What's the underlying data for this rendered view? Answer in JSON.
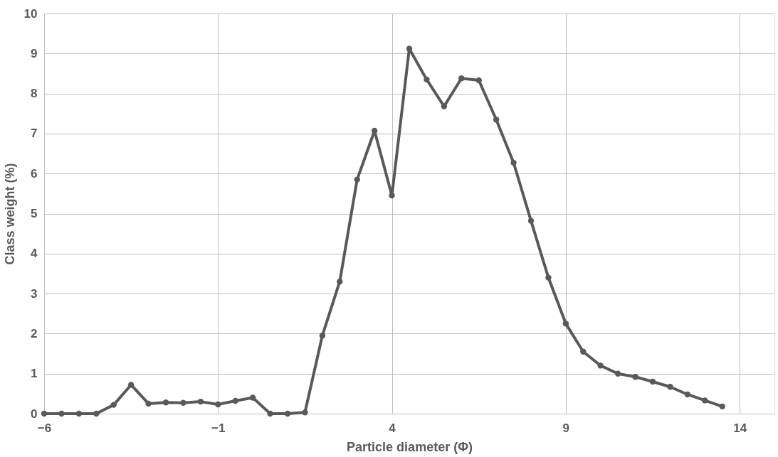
{
  "chart_data": {
    "type": "line",
    "xlabel": "Particle diameter (Φ)",
    "ylabel": "Class weight (%)",
    "x": [
      -6,
      -5.5,
      -5,
      -4.5,
      -4,
      -3.5,
      -3,
      -2.5,
      -2,
      -1.5,
      -1,
      -0.5,
      0,
      0.5,
      1,
      1.5,
      2,
      2.5,
      3,
      3.5,
      4,
      4.5,
      5,
      5.5,
      6,
      6.5,
      7,
      7.5,
      8,
      8.5,
      9,
      9.5,
      10,
      10.5,
      11,
      11.5,
      12,
      12.5,
      13,
      13.5
    ],
    "series": [
      {
        "color": "#595959",
        "values": [
          0,
          0,
          0,
          0,
          0.22,
          0.72,
          0.25,
          0.28,
          0.27,
          0.3,
          0.23,
          0.32,
          0.4,
          0,
          0,
          0.03,
          1.95,
          3.3,
          5.85,
          7.07,
          5.45,
          9.12,
          8.35,
          7.68,
          8.38,
          8.33,
          7.35,
          6.27,
          4.82,
          3.4,
          2.25,
          1.55,
          1.2,
          1.0,
          0.92,
          0.8,
          0.67,
          0.48,
          0.33,
          0.18
        ]
      }
    ],
    "xlim": [
      -6,
      15
    ],
    "xticks": [
      -6,
      -1,
      4,
      9,
      14
    ],
    "ylim": [
      0,
      10
    ],
    "yticks": [
      0,
      1,
      2,
      3,
      4,
      5,
      6,
      7,
      8,
      9,
      10
    ],
    "grid": true,
    "marker": "circle",
    "line_style": "solid"
  }
}
